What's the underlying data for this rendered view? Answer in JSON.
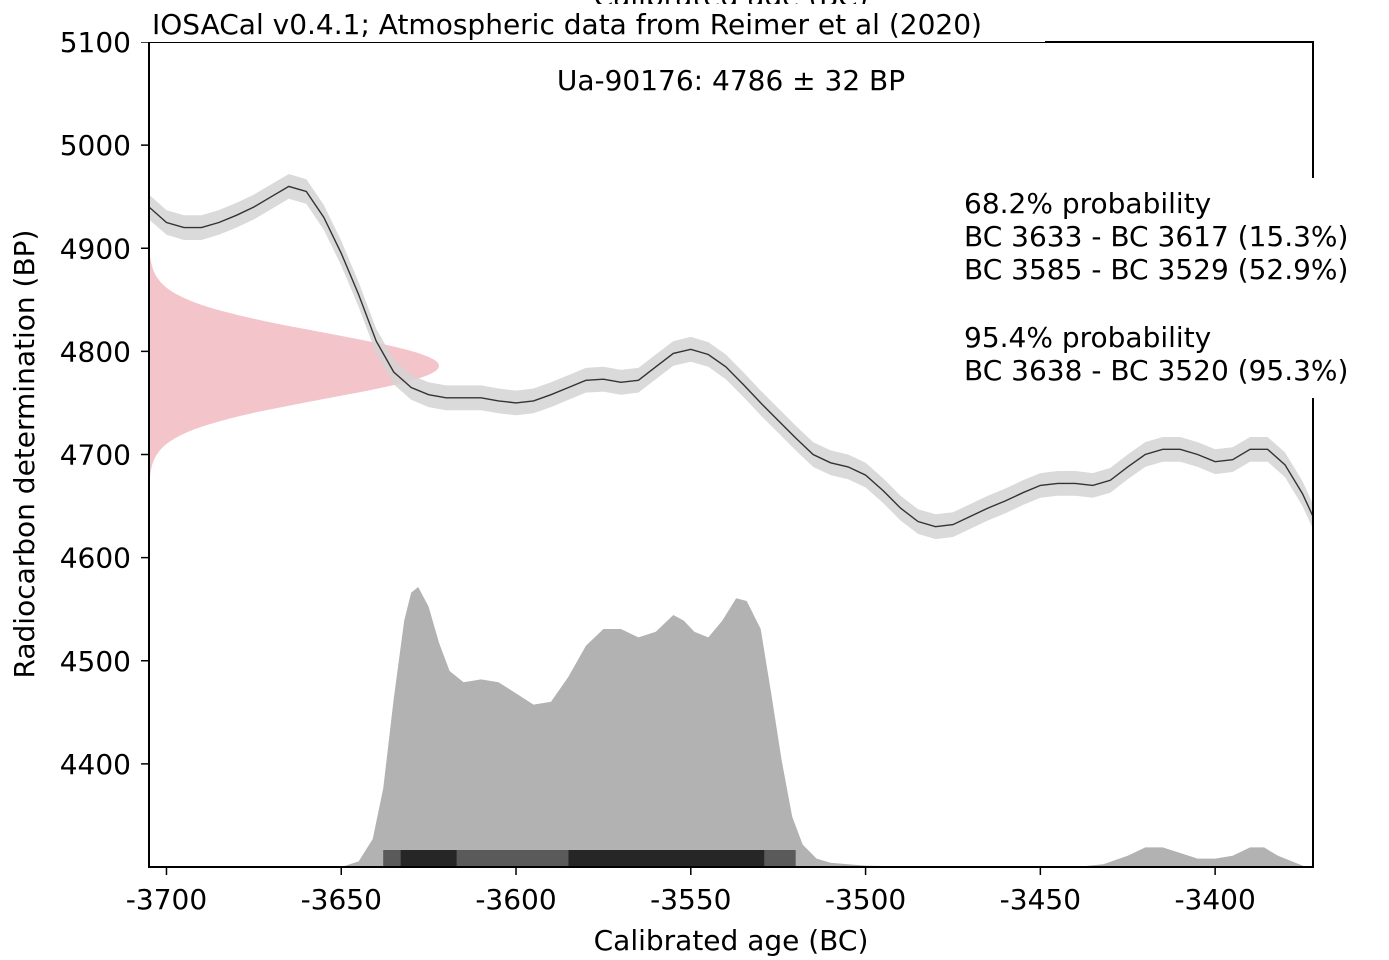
{
  "chart_data": {
    "type": "area",
    "cut_off_top_text": "Calibrated age (BC)",
    "title": "IOSACal v0.4.1; Atmospheric data from Reimer et al (2020)",
    "subtitle": "Ua-90176: 4786 ± 32 BP",
    "xlabel": "Calibrated age (BC)",
    "ylabel": "Radiocarbon determination (BP)",
    "xlim": [
      -3705,
      -3372
    ],
    "ylim": [
      4300,
      5100
    ],
    "xticks": [
      -3700,
      -3650,
      -3600,
      -3550,
      -3500,
      -3450,
      -3400
    ],
    "yticks": [
      4400,
      4500,
      4600,
      4700,
      4800,
      4900,
      5000,
      5100
    ],
    "xtick_labels": [
      "-3700",
      "-3650",
      "-3600",
      "-3550",
      "-3500",
      "-3450",
      "-3400"
    ],
    "ytick_labels": [
      "4400",
      "4500",
      "4600",
      "4700",
      "4800",
      "4900",
      "5000",
      "5100"
    ],
    "grid": false,
    "annotations": {
      "p68_header": "68.2% probability",
      "p68_lines": [
        "BC 3633 - BC 3617 (15.3%)",
        "BC 3585 - BC 3529 (52.9%)"
      ],
      "p95_header": "95.4% probability",
      "p95_lines": [
        "BC 3638 - BC 3520 (95.3%)"
      ]
    },
    "colors": {
      "curve_line": "#333333",
      "curve_band": "#d3d3d3",
      "calibrated_distribution": "#b2b2b2",
      "radiocarbon_distribution": "#f4c4cb",
      "range_68": "#262626",
      "range_95": "#5a5a5a"
    },
    "radiocarbon_date": {
      "mean": 4786,
      "sd": 32
    },
    "calibration_curve": {
      "sigma": 12,
      "points": [
        [
          -3705,
          4940
        ],
        [
          -3700,
          4925
        ],
        [
          -3695,
          4920
        ],
        [
          -3690,
          4920
        ],
        [
          -3685,
          4925
        ],
        [
          -3680,
          4932
        ],
        [
          -3675,
          4940
        ],
        [
          -3670,
          4950
        ],
        [
          -3665,
          4960
        ],
        [
          -3660,
          4955
        ],
        [
          -3655,
          4930
        ],
        [
          -3650,
          4895
        ],
        [
          -3645,
          4855
        ],
        [
          -3640,
          4810
        ],
        [
          -3635,
          4780
        ],
        [
          -3630,
          4765
        ],
        [
          -3625,
          4758
        ],
        [
          -3620,
          4755
        ],
        [
          -3615,
          4755
        ],
        [
          -3610,
          4755
        ],
        [
          -3605,
          4752
        ],
        [
          -3600,
          4750
        ],
        [
          -3595,
          4752
        ],
        [
          -3590,
          4758
        ],
        [
          -3585,
          4765
        ],
        [
          -3580,
          4772
        ],
        [
          -3575,
          4773
        ],
        [
          -3570,
          4770
        ],
        [
          -3565,
          4772
        ],
        [
          -3560,
          4785
        ],
        [
          -3555,
          4798
        ],
        [
          -3550,
          4802
        ],
        [
          -3545,
          4797
        ],
        [
          -3540,
          4785
        ],
        [
          -3535,
          4768
        ],
        [
          -3530,
          4750
        ],
        [
          -3525,
          4733
        ],
        [
          -3520,
          4716
        ],
        [
          -3515,
          4700
        ],
        [
          -3510,
          4692
        ],
        [
          -3505,
          4688
        ],
        [
          -3500,
          4680
        ],
        [
          -3495,
          4665
        ],
        [
          -3490,
          4648
        ],
        [
          -3485,
          4635
        ],
        [
          -3480,
          4630
        ],
        [
          -3475,
          4632
        ],
        [
          -3470,
          4640
        ],
        [
          -3465,
          4648
        ],
        [
          -3460,
          4655
        ],
        [
          -3455,
          4663
        ],
        [
          -3450,
          4670
        ],
        [
          -3445,
          4672
        ],
        [
          -3440,
          4672
        ],
        [
          -3435,
          4670
        ],
        [
          -3430,
          4675
        ],
        [
          -3425,
          4688
        ],
        [
          -3420,
          4700
        ],
        [
          -3415,
          4705
        ],
        [
          -3410,
          4705
        ],
        [
          -3405,
          4700
        ],
        [
          -3400,
          4693
        ],
        [
          -3395,
          4695
        ],
        [
          -3390,
          4705
        ],
        [
          -3385,
          4705
        ],
        [
          -3380,
          4690
        ],
        [
          -3375,
          4662
        ],
        [
          -3372,
          4640
        ]
      ]
    },
    "calibrated_distribution": {
      "note_units": "relative probability (0-1)",
      "points": [
        [
          -3650,
          0.0
        ],
        [
          -3645,
          0.02
        ],
        [
          -3641,
          0.1
        ],
        [
          -3638,
          0.28
        ],
        [
          -3635,
          0.6
        ],
        [
          -3632,
          0.88
        ],
        [
          -3630,
          0.98
        ],
        [
          -3628,
          1.0
        ],
        [
          -3625,
          0.93
        ],
        [
          -3622,
          0.8
        ],
        [
          -3619,
          0.7
        ],
        [
          -3615,
          0.66
        ],
        [
          -3610,
          0.67
        ],
        [
          -3605,
          0.66
        ],
        [
          -3600,
          0.62
        ],
        [
          -3595,
          0.58
        ],
        [
          -3590,
          0.59
        ],
        [
          -3585,
          0.68
        ],
        [
          -3580,
          0.79
        ],
        [
          -3575,
          0.85
        ],
        [
          -3570,
          0.85
        ],
        [
          -3565,
          0.82
        ],
        [
          -3560,
          0.84
        ],
        [
          -3555,
          0.9
        ],
        [
          -3552,
          0.88
        ],
        [
          -3549,
          0.84
        ],
        [
          -3545,
          0.82
        ],
        [
          -3541,
          0.88
        ],
        [
          -3537,
          0.96
        ],
        [
          -3534,
          0.95
        ],
        [
          -3530,
          0.85
        ],
        [
          -3527,
          0.62
        ],
        [
          -3524,
          0.38
        ],
        [
          -3521,
          0.18
        ],
        [
          -3518,
          0.08
        ],
        [
          -3514,
          0.03
        ],
        [
          -3510,
          0.015
        ],
        [
          -3505,
          0.01
        ],
        [
          -3500,
          0.005
        ],
        [
          -3490,
          0.002
        ],
        [
          -3480,
          0.0
        ],
        [
          -3440,
          0.0
        ],
        [
          -3432,
          0.01
        ],
        [
          -3425,
          0.04
        ],
        [
          -3420,
          0.07
        ],
        [
          -3415,
          0.07
        ],
        [
          -3410,
          0.05
        ],
        [
          -3405,
          0.03
        ],
        [
          -3400,
          0.03
        ],
        [
          -3395,
          0.04
        ],
        [
          -3390,
          0.07
        ],
        [
          -3386,
          0.07
        ],
        [
          -3382,
          0.04
        ],
        [
          -3378,
          0.02
        ],
        [
          -3374,
          0.0
        ]
      ]
    },
    "ranges_68": [
      [
        -3633,
        -3617
      ],
      [
        -3585,
        -3529
      ]
    ],
    "ranges_95": [
      [
        -3638,
        -3520
      ]
    ]
  }
}
